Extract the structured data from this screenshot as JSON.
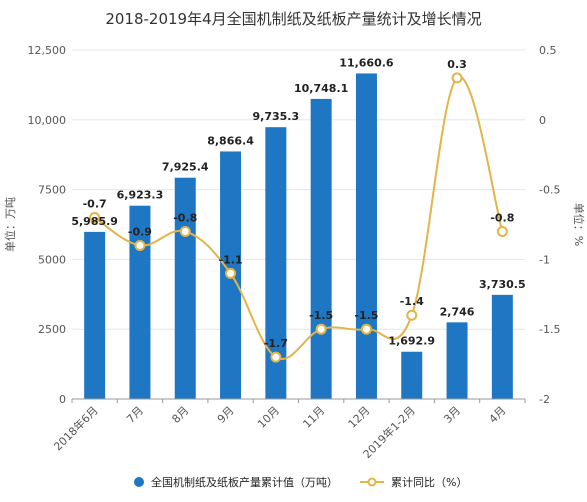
{
  "chart_data": {
    "type": "bar",
    "title": "2018-2019年4月全国机制纸及纸板产量统计及增长情况",
    "categories": [
      "2018年6月",
      "7月",
      "8月",
      "9月",
      "10月",
      "11月",
      "12月",
      "2019年1-2月",
      "3月",
      "4月"
    ],
    "series": [
      {
        "name": "全国机制纸及纸板产量累计值（万吨）",
        "type": "bar",
        "axis": "left",
        "values": [
          5985.9,
          6923.3,
          7925.4,
          8866.4,
          9735.3,
          10748.1,
          11660.6,
          1692.9,
          2746,
          3730.5
        ],
        "labels": [
          "5,985.9",
          "6,923.3",
          "7,925.4",
          "8,866.4",
          "9,735.3",
          "10,748.1",
          "11,660.6",
          "1,692.9",
          "2,746",
          "3,730.5"
        ]
      },
      {
        "name": "累计同比（%）",
        "type": "line",
        "axis": "right",
        "values": [
          -0.7,
          -0.9,
          -0.8,
          -1.1,
          -1.7,
          -1.5,
          -1.5,
          -1.4,
          0.3,
          -0.8
        ],
        "labels": [
          "-0.7",
          "-0.9",
          "-0.8",
          "-1.1",
          "-1.7",
          "-1.5",
          "-1.5",
          "-1.4",
          "0.3",
          "-0.8"
        ]
      }
    ],
    "ylabel": "单位：万吨",
    "y2label": "单位：%",
    "ylim": [
      0,
      12500
    ],
    "y2lim": [
      -2,
      0.5
    ],
    "yticks": [
      "0",
      "2500",
      "5000",
      "7500",
      "10,000",
      "12,500"
    ],
    "y2ticks": [
      "-2",
      "-1.5",
      "-1",
      "-0.5",
      "0",
      "0.5"
    ],
    "legend_position": "bottom",
    "colors": {
      "bar": "#1f77c4",
      "line": "#e3b448"
    }
  }
}
